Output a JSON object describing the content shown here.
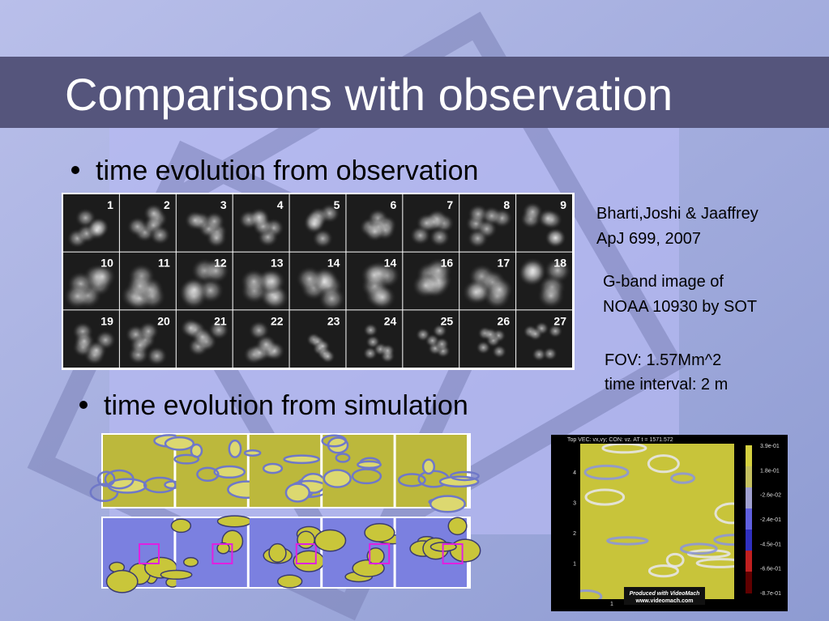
{
  "title": "Comparisons with observation",
  "bullets": [
    "time evolution from observation",
    "time evolution from simulation"
  ],
  "reference": [
    "Bharti,Joshi & Jaaffrey",
    "ApJ 699, 2007"
  ],
  "image_note": [
    "G-band image of",
    "NOAA 10930 by SOT"
  ],
  "fov": [
    "FOV: 1.57Mm^2",
    "time interval: 2 m"
  ],
  "observation_frames": [
    "1",
    "2",
    "3",
    "4",
    "5",
    "6",
    "7",
    "8",
    "9",
    "10",
    "11",
    "12",
    "13",
    "14",
    "14",
    "16",
    "17",
    "18",
    "19",
    "20",
    "21",
    "22",
    "23",
    "24",
    "25",
    "26",
    "27"
  ],
  "simulation_plot": {
    "header": "Top VEC: vx,vy; CON: vz. AT t = 1571.572",
    "colorbar_labels": [
      "3.9e-01",
      "1.8e-01",
      "-2.6e-02",
      "-2.4e-01",
      "-4.5e-01",
      "-6.6e-01",
      "-8.7e-01"
    ],
    "y_axis_labels": [
      "4",
      "3",
      "2",
      "1"
    ],
    "x_axis_labels": [
      "1"
    ],
    "credit": [
      "Produced with VideoMach",
      "www.videomach.com"
    ]
  }
}
